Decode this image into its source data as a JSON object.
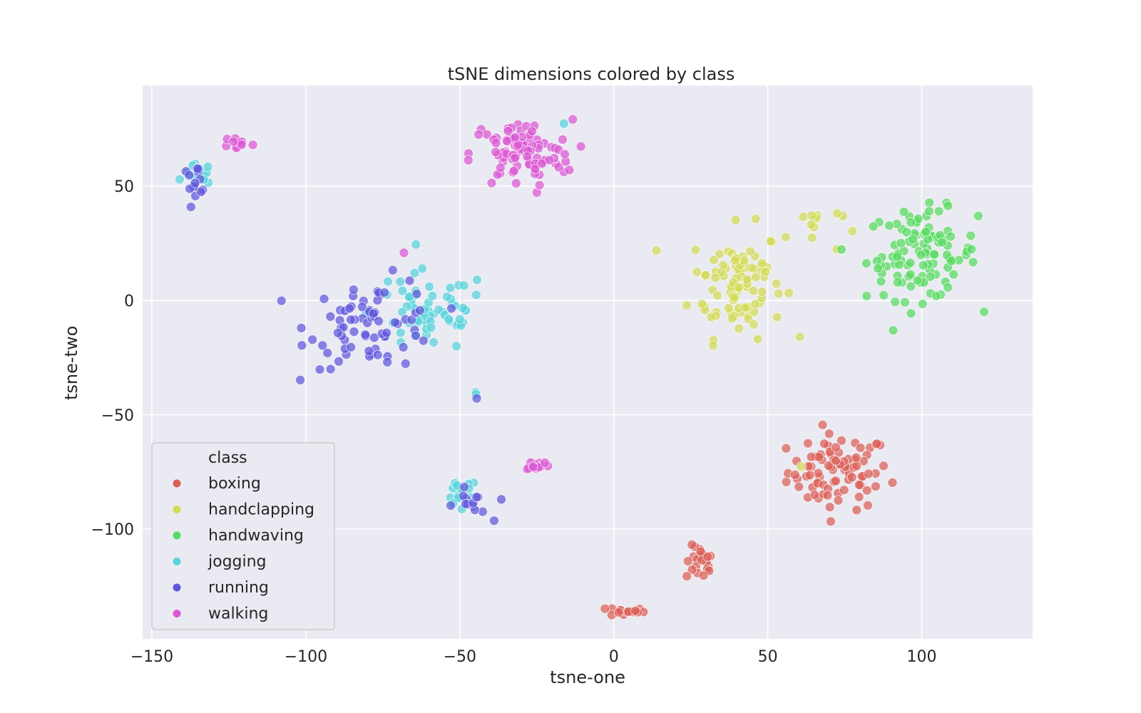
{
  "chart_data": {
    "type": "scatter",
    "title": "tSNE dimensions colored by class",
    "xlabel": "tsne-one",
    "ylabel": "tsne-two",
    "xlim": [
      -153,
      136
    ],
    "ylim": [
      -148,
      94
    ],
    "xticks": [
      -150,
      -100,
      -50,
      0,
      50,
      100
    ],
    "yticks": [
      -100,
      -50,
      0,
      50
    ],
    "xtick_labels": [
      "−150",
      "−100",
      "−50",
      "0",
      "50",
      "100"
    ],
    "ytick_labels": [
      "−100",
      "−50",
      "0",
      "50"
    ],
    "grid": true,
    "background": "#eaeaf2",
    "legend": {
      "title": "class",
      "placement": "lower-left"
    },
    "series": [
      {
        "name": "boxing",
        "color": "#db5f57",
        "clusters": [
          {
            "center": [
              73,
              -75
            ],
            "spread": [
              11,
              11
            ],
            "count": 85
          },
          {
            "center": [
              28,
              -115
            ],
            "spread": [
              3,
              5
            ],
            "count": 22
          },
          {
            "center": [
              4,
              -136
            ],
            "spread": [
              4,
              1.5
            ],
            "count": 16
          }
        ]
      },
      {
        "name": "handclapping",
        "color": "#d3db57",
        "clusters": [
          {
            "center": [
              40,
              8
            ],
            "spread": [
              10,
              16
            ],
            "count": 95
          },
          {
            "center": [
              65,
              32
            ],
            "spread": [
              6,
              8
            ],
            "count": 12
          },
          {
            "center": [
              61,
              -72
            ],
            "spread": [
              1,
              1
            ],
            "count": 1
          }
        ]
      },
      {
        "name": "handwaving",
        "color": "#57db5f",
        "clusters": [
          {
            "center": [
              100,
              20
            ],
            "spread": [
              12,
              13
            ],
            "count": 110
          }
        ]
      },
      {
        "name": "jogging",
        "color": "#57d3db",
        "clusters": [
          {
            "center": [
              -60,
              -5
            ],
            "spread": [
              13,
              12
            ],
            "count": 65
          },
          {
            "center": [
              -135,
              55
            ],
            "spread": [
              3,
              3
            ],
            "count": 16
          },
          {
            "center": [
              -50,
              -85
            ],
            "spread": [
              4,
              5
            ],
            "count": 14
          },
          {
            "center": [
              -45,
              -42
            ],
            "spread": [
              0.5,
              1
            ],
            "count": 2
          },
          {
            "center": [
              -16,
              77
            ],
            "spread": [
              1,
              1
            ],
            "count": 1
          }
        ]
      },
      {
        "name": "running",
        "color": "#5f57db",
        "clusters": [
          {
            "center": [
              -78,
              -10
            ],
            "spread": [
              14,
              13
            ],
            "count": 75
          },
          {
            "center": [
              -136,
              53
            ],
            "spread": [
              3,
              4
            ],
            "count": 14
          },
          {
            "center": [
              -46,
              -90
            ],
            "spread": [
              4,
              5
            ],
            "count": 14
          },
          {
            "center": [
              -45,
              -43
            ],
            "spread": [
              0.5,
              0.5
            ],
            "count": 1
          }
        ]
      },
      {
        "name": "walking",
        "color": "#db57d3",
        "clusters": [
          {
            "center": [
              -30,
              64
            ],
            "spread": [
              11,
              10
            ],
            "count": 90
          },
          {
            "center": [
              -122,
              69
            ],
            "spread": [
              3,
              2
            ],
            "count": 12
          },
          {
            "center": [
              -25,
              -72
            ],
            "spread": [
              3,
              1.5
            ],
            "count": 14
          },
          {
            "center": [
              -68,
              23
            ],
            "spread": [
              1,
              1
            ],
            "count": 1
          }
        ]
      }
    ]
  }
}
